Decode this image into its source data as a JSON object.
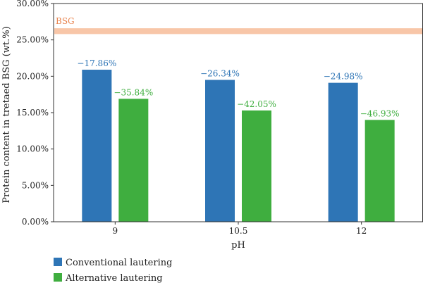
{
  "chart_data": {
    "type": "bar",
    "title": "",
    "xlabel": "pH",
    "ylabel": "Protein content in tretaed BSG (wt.%)",
    "categories": [
      "9",
      "10.5",
      "12"
    ],
    "ylim": [
      0,
      30
    ],
    "yticks": [
      "0.00%",
      "5.00%",
      "10.00%",
      "15.00%",
      "20.00%",
      "25.00%",
      "30.00%"
    ],
    "series": [
      {
        "name": "Conventional lautering",
        "color": "#2e75b6",
        "values": [
          20.9,
          19.5,
          19.1
        ],
        "labels": [
          "−17.86%",
          "−26.34%",
          "−24.98%"
        ]
      },
      {
        "name": "Alternative lautering",
        "color": "#3fae3f",
        "values": [
          16.9,
          15.3,
          14.0
        ],
        "labels": [
          "−35.84%",
          "−42.05%",
          "−46.93%"
        ]
      }
    ],
    "reference_band": {
      "label": "BSG",
      "low": 25.8,
      "high": 26.6,
      "color": "#f8c6a8",
      "label_color": "#e8834e"
    },
    "legend_position": "bottom-left",
    "grid": false
  }
}
